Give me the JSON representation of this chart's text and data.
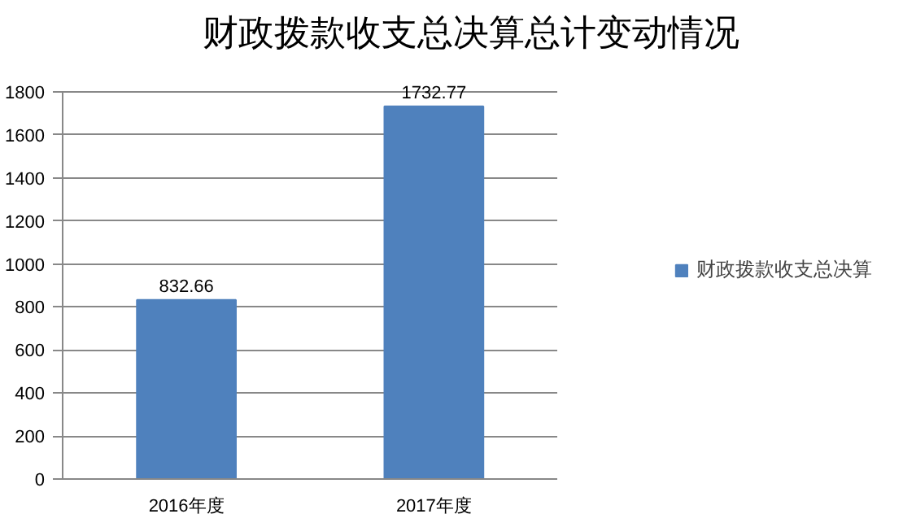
{
  "chart_data": {
    "type": "bar",
    "title": "财政拨款收支总决算总计变动情况",
    "categories": [
      "2016年度",
      "2017年度"
    ],
    "series": [
      {
        "name": "财政拨款收支总决算",
        "color": "#4f81bd",
        "values": [
          832.66,
          1732.77
        ]
      }
    ],
    "ylim": [
      0,
      1800
    ],
    "yticks": [
      0,
      200,
      400,
      600,
      800,
      1000,
      1200,
      1400,
      1600,
      1800
    ],
    "grid": "y",
    "legend": "right",
    "data_labels": true
  }
}
